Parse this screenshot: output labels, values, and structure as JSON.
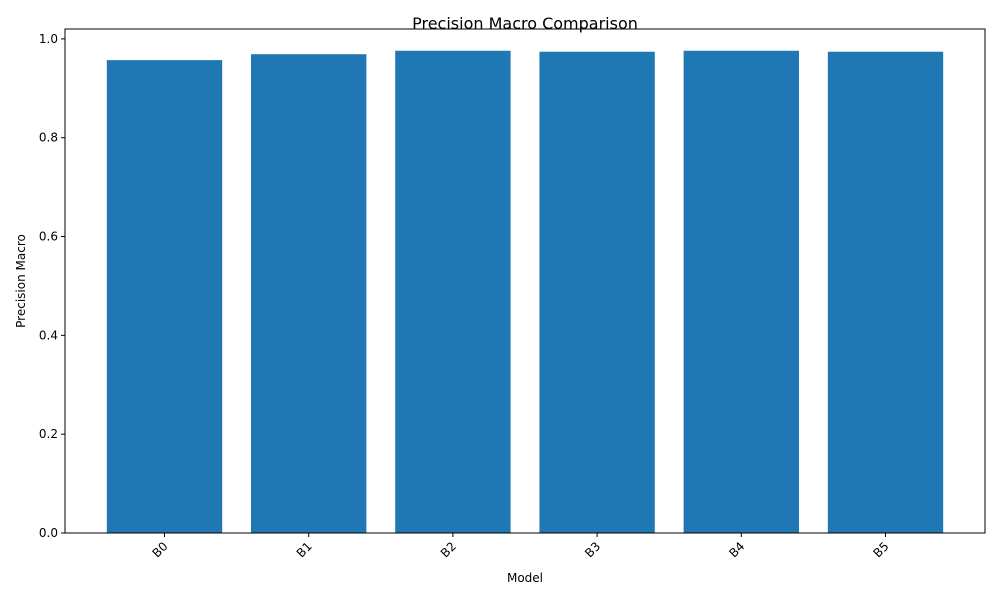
{
  "chart_data": {
    "type": "bar",
    "title": "Precision Macro Comparison",
    "xlabel": "Model",
    "ylabel": "Precision Macro",
    "categories": [
      "B0",
      "B1",
      "B2",
      "B3",
      "B4",
      "B5"
    ],
    "values": [
      0.957,
      0.969,
      0.976,
      0.974,
      0.976,
      0.974
    ],
    "ylim": [
      0,
      1.02
    ],
    "yticks": [
      "0.0",
      "0.2",
      "0.4",
      "0.6",
      "0.8",
      "1.0"
    ],
    "grid": false,
    "legend": "none",
    "bar_color": "#1f77b4",
    "xtick_rotation": 45
  }
}
